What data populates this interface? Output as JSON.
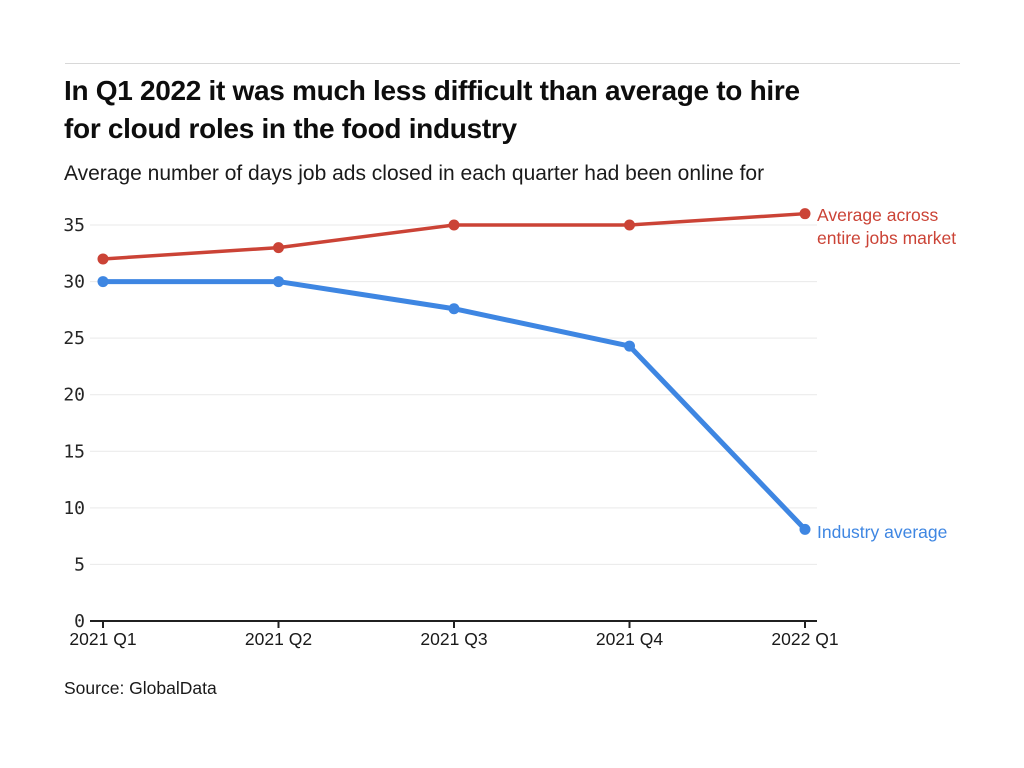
{
  "header": {
    "title_lines": [
      "In Q1 2022 it was much less difficult than average to hire",
      "for cloud roles in the food industry"
    ],
    "subtitle": "Average number of days job ads closed in each quarter had been online for"
  },
  "footer": {
    "source": "Source: GlobalData"
  },
  "colors": {
    "red_series": "#cb4336",
    "blue_series": "#3e86e2",
    "gridline": "#e9e9e9",
    "axis": "#202020",
    "divider": "#d8d8d8",
    "title_text": "#0d0d0d",
    "tick_text": "#262626"
  },
  "chart_data": {
    "type": "line",
    "title": "In Q1 2022 it was much less difficult than average to hire for cloud roles in the food industry",
    "subtitle": "Average number of days job ads closed in each quarter had been online for",
    "categories": [
      "2021 Q1",
      "2021 Q2",
      "2021 Q3",
      "2021 Q4",
      "2022 Q1"
    ],
    "series": [
      {
        "name": "Average across entire jobs market",
        "legend_lines": [
          "Average across",
          "entire jobs market"
        ],
        "color": "#cb4336",
        "values": [
          32,
          33,
          35,
          35,
          36
        ]
      },
      {
        "name": "Industry average",
        "legend_lines": [
          "Industry average"
        ],
        "color": "#3e86e2",
        "values": [
          30,
          30,
          27.6,
          24.3,
          8.1
        ]
      }
    ],
    "xlabel": "",
    "ylabel": "",
    "ylim": [
      0,
      35
    ],
    "yticks": [
      0,
      5,
      10,
      15,
      20,
      25,
      30,
      35
    ],
    "grid": "horizontal",
    "legend": "labels-at-line-end",
    "source": "Source: GlobalData"
  }
}
